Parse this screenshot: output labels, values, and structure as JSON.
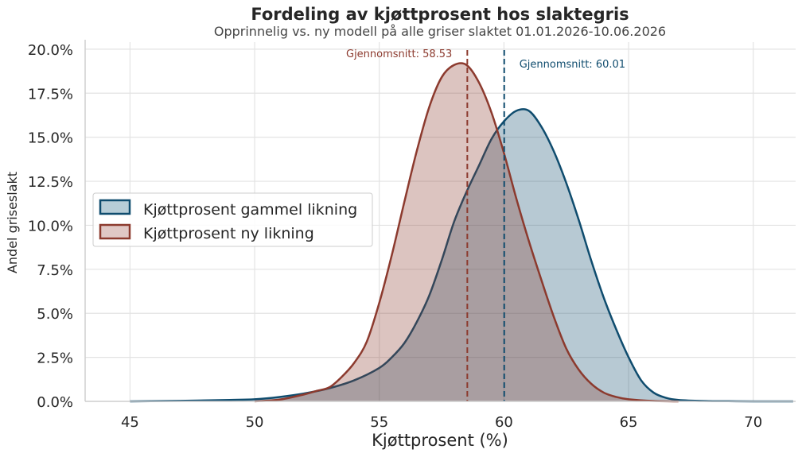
{
  "chart_data": {
    "type": "area",
    "title": "Fordeling av kjøttprosent hos slaktegris",
    "subtitle": "Opprinnelig vs. ny modell på alle griser slaktet 01.01.2026-10.06.2026",
    "xlabel": "Kjøttprosent (%)",
    "ylabel": "Andel griseslakt",
    "xlim": [
      43.2,
      71.7
    ],
    "ylim": [
      0,
      20.4
    ],
    "xticks": [
      "45",
      "50",
      "55",
      "60",
      "65",
      "70"
    ],
    "xtick_values": [
      45,
      50,
      55,
      60,
      65,
      70
    ],
    "yticks": [
      "0.0%",
      "2.5%",
      "5.0%",
      "7.5%",
      "10.0%",
      "12.5%",
      "15.0%",
      "17.5%",
      "20.0%"
    ],
    "ytick_values": [
      0,
      2.5,
      5,
      7.5,
      10,
      12.5,
      15,
      17.5,
      20
    ],
    "grid": true,
    "legend_position": "center-left",
    "series": [
      {
        "name": "Kjøttprosent gammel likning",
        "color": "#0f4c6e",
        "fill": "#b7cdd7",
        "mean": 60.01,
        "mean_label": "Gjennomsnitt: 60.01",
        "x": [
          45,
          47,
          49,
          50,
          51,
          52,
          53,
          54,
          55,
          55.5,
          56,
          56.5,
          57,
          57.5,
          58,
          58.5,
          59,
          59.5,
          60,
          60.5,
          61,
          61.5,
          62,
          62.5,
          63,
          63.5,
          64,
          64.5,
          65,
          65.5,
          66,
          66.5,
          67,
          68,
          69,
          70,
          71.6
        ],
        "y": [
          0,
          0.03,
          0.08,
          0.12,
          0.25,
          0.45,
          0.75,
          1.2,
          1.9,
          2.5,
          3.3,
          4.5,
          6.0,
          8.0,
          10.2,
          11.9,
          13.4,
          14.9,
          15.9,
          16.5,
          16.5,
          15.6,
          14.2,
          12.4,
          10.3,
          8.0,
          5.9,
          4.1,
          2.5,
          1.2,
          0.5,
          0.2,
          0.08,
          0.02,
          0.01,
          0,
          0
        ]
      },
      {
        "name": "Kjøttprosent ny likning",
        "color": "#8c3a2e",
        "fill": "#e0c8c5",
        "mean": 58.53,
        "mean_label": "Gjennomsnitt: 58.53",
        "x": [
          50,
          51,
          52,
          52.5,
          53,
          53.5,
          54,
          54.5,
          55,
          55.5,
          56,
          56.5,
          57,
          57.5,
          58,
          58.5,
          59,
          59.5,
          60,
          60.5,
          61,
          61.5,
          62,
          62.5,
          63,
          63.5,
          64,
          64.5,
          65,
          66,
          67
        ],
        "y": [
          0,
          0.1,
          0.4,
          0.6,
          0.8,
          1.4,
          2.2,
          3.4,
          5.6,
          8.3,
          11.3,
          14.2,
          16.7,
          18.4,
          19.1,
          19.1,
          18.1,
          16.4,
          14.1,
          11.5,
          9.1,
          6.9,
          4.8,
          3.0,
          1.8,
          1.0,
          0.5,
          0.25,
          0.12,
          0.02,
          0
        ]
      }
    ]
  }
}
